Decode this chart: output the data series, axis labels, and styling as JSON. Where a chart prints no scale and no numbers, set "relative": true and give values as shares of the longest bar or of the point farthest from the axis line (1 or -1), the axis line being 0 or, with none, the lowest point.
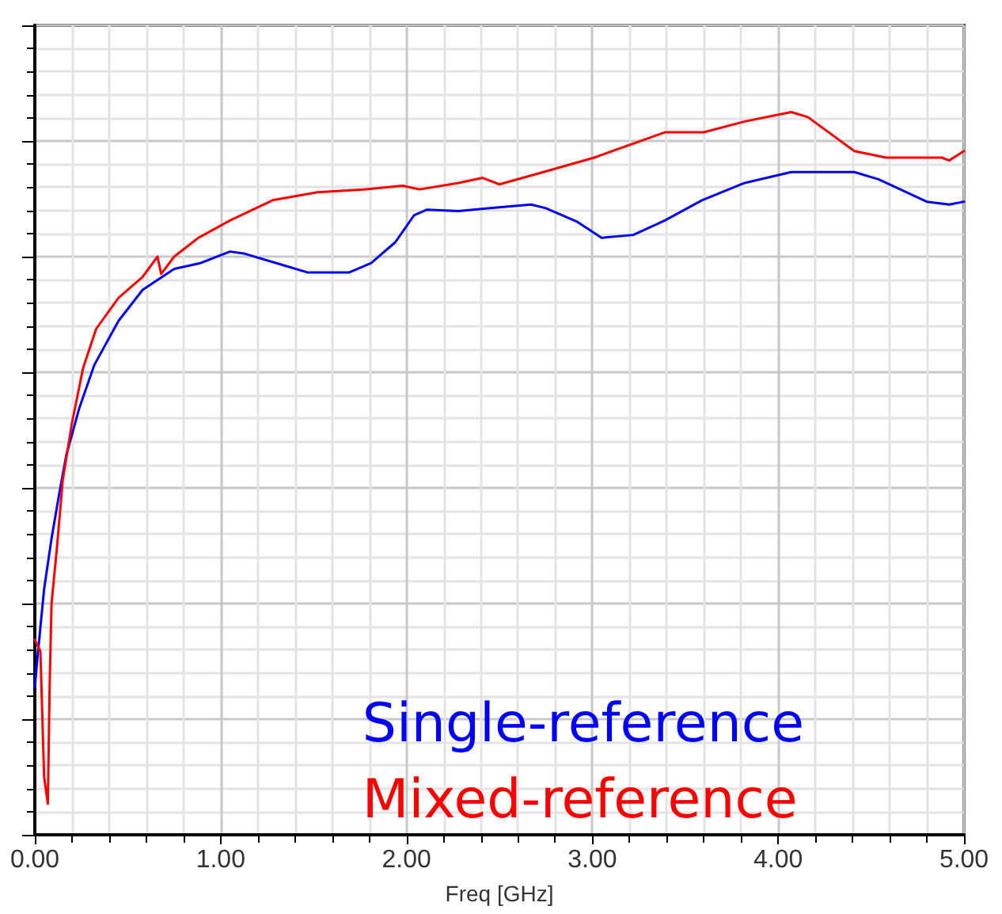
{
  "chart_data": {
    "type": "line",
    "xlabel": "Freq [GHz]",
    "relative": true,
    "grid": true,
    "legend": "bottom right",
    "marker": "none",
    "line_style": "solid",
    "xlim": [
      0,
      5
    ],
    "xticks": [
      {
        "value": 0,
        "label": "0.00"
      },
      {
        "value": 1,
        "label": "1.00"
      },
      {
        "value": 2,
        "label": "2.00"
      },
      {
        "value": 3,
        "label": "3.00"
      },
      {
        "value": 4,
        "label": "4.00"
      },
      {
        "value": 5,
        "label": "5.00"
      }
    ],
    "series": [
      {
        "name": "Single-reference",
        "color": "#0000ff",
        "x": [
          0,
          0.01,
          0.03,
          0.05,
          0.09,
          0.13,
          0.17,
          0.24,
          0.32,
          0.45,
          0.58,
          0.75,
          0.89,
          1.05,
          1.13,
          1.3,
          1.47,
          1.69,
          1.81,
          1.94,
          2.04,
          2.11,
          2.28,
          2.45,
          2.67,
          2.75,
          2.92,
          3.05,
          3.22,
          3.39,
          3.59,
          3.82,
          4.07,
          4.41,
          4.54,
          4.8,
          4.92,
          5.0
        ],
        "values": [
          0.204,
          0.233,
          0.287,
          0.34,
          0.41,
          0.47,
          0.526,
          0.591,
          0.65,
          0.711,
          0.754,
          0.783,
          0.791,
          0.807,
          0.804,
          0.791,
          0.778,
          0.778,
          0.791,
          0.82,
          0.857,
          0.865,
          0.863,
          0.867,
          0.872,
          0.867,
          0.848,
          0.826,
          0.83,
          0.85,
          0.878,
          0.902,
          0.917,
          0.917,
          0.907,
          0.876,
          0.872,
          0.876
        ]
      },
      {
        "name": "Mixed-reference",
        "color": "#ff0000",
        "x": [
          0,
          0.03,
          0.05,
          0.07,
          0.08,
          0.09,
          0.12,
          0.15,
          0.2,
          0.26,
          0.33,
          0.45,
          0.58,
          0.66,
          0.68,
          0.75,
          0.88,
          1.05,
          1.28,
          1.52,
          1.77,
          1.98,
          2.07,
          2.28,
          2.41,
          2.5,
          2.71,
          3.01,
          3.39,
          3.6,
          3.82,
          4.07,
          4.16,
          4.41,
          4.58,
          4.88,
          4.92,
          5.0
        ],
        "values": [
          0.27,
          0.254,
          0.08,
          0.043,
          0.21,
          0.32,
          0.4,
          0.49,
          0.57,
          0.646,
          0.7,
          0.743,
          0.772,
          0.8,
          0.776,
          0.8,
          0.826,
          0.85,
          0.878,
          0.889,
          0.893,
          0.898,
          0.893,
          0.902,
          0.909,
          0.9,
          0.915,
          0.937,
          0.972,
          0.972,
          0.987,
          1.0,
          0.993,
          0.946,
          0.937,
          0.937,
          0.933,
          0.946
        ]
      }
    ]
  }
}
